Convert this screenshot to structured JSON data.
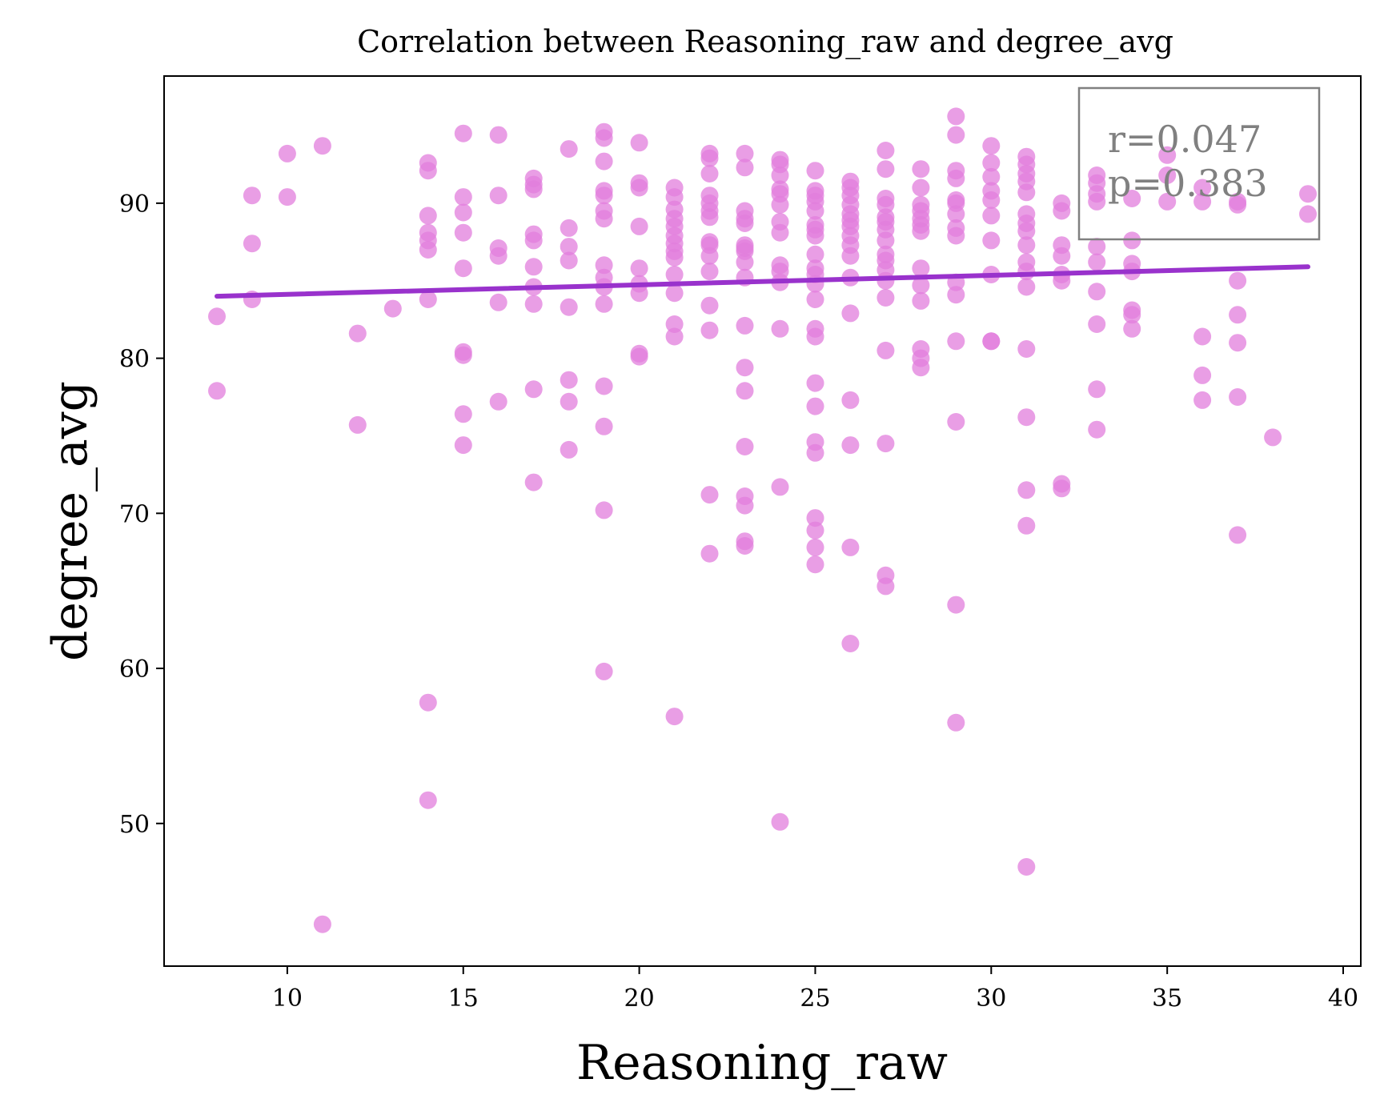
{
  "chart_data": {
    "type": "scatter",
    "title": "Correlation between Reasoning_raw and degree_avg",
    "xlabel": "Reasoning_raw",
    "ylabel": "degree_avg",
    "xlim": [
      6.5,
      40.5
    ],
    "ylim": [
      40.8,
      98.2
    ],
    "xticks": [
      10,
      15,
      20,
      25,
      30,
      35,
      40
    ],
    "yticks": [
      50,
      60,
      70,
      80,
      90
    ],
    "grid": false,
    "point_color": "#e17ddc",
    "line_color": "#9932cc",
    "stats": {
      "r_text": "r=0.047",
      "p_text": "p=0.383",
      "position": "top-right"
    },
    "regression_line": {
      "x": [
        8,
        39
      ],
      "y": [
        84.0,
        85.9
      ]
    },
    "points": [
      [
        8,
        82.7
      ],
      [
        8,
        77.9
      ],
      [
        9,
        90.5
      ],
      [
        9,
        87.4
      ],
      [
        9,
        83.8
      ],
      [
        10,
        93.2
      ],
      [
        10,
        90.4
      ],
      [
        11,
        93.7
      ],
      [
        11,
        43.5
      ],
      [
        12,
        81.6
      ],
      [
        12,
        75.7
      ],
      [
        13,
        83.2
      ],
      [
        14,
        92.6
      ],
      [
        14,
        92.1
      ],
      [
        14,
        89.2
      ],
      [
        14,
        88.1
      ],
      [
        14,
        87.6
      ],
      [
        14,
        87.0
      ],
      [
        14,
        83.8
      ],
      [
        14,
        57.8
      ],
      [
        14,
        51.5
      ],
      [
        15,
        94.5
      ],
      [
        15,
        90.4
      ],
      [
        15,
        89.4
      ],
      [
        15,
        88.1
      ],
      [
        15,
        85.8
      ],
      [
        15,
        80.4
      ],
      [
        15,
        80.2
      ],
      [
        15,
        76.4
      ],
      [
        15,
        74.4
      ],
      [
        16,
        94.4
      ],
      [
        16,
        90.5
      ],
      [
        16,
        87.1
      ],
      [
        16,
        86.6
      ],
      [
        16,
        83.6
      ],
      [
        16,
        77.2
      ],
      [
        17,
        91.6
      ],
      [
        17,
        91.2
      ],
      [
        17,
        90.9
      ],
      [
        17,
        88.0
      ],
      [
        17,
        87.6
      ],
      [
        17,
        85.9
      ],
      [
        17,
        84.6
      ],
      [
        17,
        83.5
      ],
      [
        17,
        78.0
      ],
      [
        17,
        72.0
      ],
      [
        18,
        93.5
      ],
      [
        18,
        88.4
      ],
      [
        18,
        87.2
      ],
      [
        18,
        86.3
      ],
      [
        18,
        83.3
      ],
      [
        18,
        78.6
      ],
      [
        18,
        77.2
      ],
      [
        18,
        74.1
      ],
      [
        19,
        94.6
      ],
      [
        19,
        94.2
      ],
      [
        19,
        92.7
      ],
      [
        19,
        90.8
      ],
      [
        19,
        90.5
      ],
      [
        19,
        89.5
      ],
      [
        19,
        89.0
      ],
      [
        19,
        86.0
      ],
      [
        19,
        85.2
      ],
      [
        19,
        84.6
      ],
      [
        19,
        83.5
      ],
      [
        19,
        78.2
      ],
      [
        19,
        75.6
      ],
      [
        19,
        70.2
      ],
      [
        19,
        59.8
      ],
      [
        20,
        93.9
      ],
      [
        20,
        91.3
      ],
      [
        20,
        91.0
      ],
      [
        20,
        88.5
      ],
      [
        20,
        85.8
      ],
      [
        20,
        84.8
      ],
      [
        20,
        84.2
      ],
      [
        20,
        80.3
      ],
      [
        20,
        80.1
      ],
      [
        21,
        91.0
      ],
      [
        21,
        90.4
      ],
      [
        21,
        89.6
      ],
      [
        21,
        89.0
      ],
      [
        21,
        88.5
      ],
      [
        21,
        87.9
      ],
      [
        21,
        87.4
      ],
      [
        21,
        86.9
      ],
      [
        21,
        86.5
      ],
      [
        21,
        85.4
      ],
      [
        21,
        84.2
      ],
      [
        21,
        82.2
      ],
      [
        21,
        81.4
      ],
      [
        21,
        56.9
      ],
      [
        22,
        93.2
      ],
      [
        22,
        92.9
      ],
      [
        22,
        91.9
      ],
      [
        22,
        90.5
      ],
      [
        22,
        90.0
      ],
      [
        22,
        89.5
      ],
      [
        22,
        89.1
      ],
      [
        22,
        87.5
      ],
      [
        22,
        87.3
      ],
      [
        22,
        86.6
      ],
      [
        22,
        85.6
      ],
      [
        22,
        83.4
      ],
      [
        22,
        81.8
      ],
      [
        22,
        71.2
      ],
      [
        22,
        67.4
      ],
      [
        23,
        93.2
      ],
      [
        23,
        92.3
      ],
      [
        23,
        89.5
      ],
      [
        23,
        89.0
      ],
      [
        23,
        88.7
      ],
      [
        23,
        87.3
      ],
      [
        23,
        87.1
      ],
      [
        23,
        86.9
      ],
      [
        23,
        86.2
      ],
      [
        23,
        85.2
      ],
      [
        23,
        82.1
      ],
      [
        23,
        79.4
      ],
      [
        23,
        77.9
      ],
      [
        23,
        74.3
      ],
      [
        23,
        71.1
      ],
      [
        23,
        70.5
      ],
      [
        23,
        68.2
      ],
      [
        23,
        67.9
      ],
      [
        24,
        92.8
      ],
      [
        24,
        92.5
      ],
      [
        24,
        91.8
      ],
      [
        24,
        90.9
      ],
      [
        24,
        90.6
      ],
      [
        24,
        89.9
      ],
      [
        24,
        88.8
      ],
      [
        24,
        88.1
      ],
      [
        24,
        86.0
      ],
      [
        24,
        85.6
      ],
      [
        24,
        84.9
      ],
      [
        24,
        81.9
      ],
      [
        24,
        71.7
      ],
      [
        24,
        50.1
      ],
      [
        25,
        92.1
      ],
      [
        25,
        90.8
      ],
      [
        25,
        90.5
      ],
      [
        25,
        90.1
      ],
      [
        25,
        89.5
      ],
      [
        25,
        88.6
      ],
      [
        25,
        88.3
      ],
      [
        25,
        87.9
      ],
      [
        25,
        86.7
      ],
      [
        25,
        85.8
      ],
      [
        25,
        85.4
      ],
      [
        25,
        84.8
      ],
      [
        25,
        83.8
      ],
      [
        25,
        81.9
      ],
      [
        25,
        81.4
      ],
      [
        25,
        78.4
      ],
      [
        25,
        76.9
      ],
      [
        25,
        74.6
      ],
      [
        25,
        73.9
      ],
      [
        25,
        69.7
      ],
      [
        25,
        68.9
      ],
      [
        25,
        67.8
      ],
      [
        25,
        66.7
      ],
      [
        26,
        91.4
      ],
      [
        26,
        91.0
      ],
      [
        26,
        90.5
      ],
      [
        26,
        89.9
      ],
      [
        26,
        89.3
      ],
      [
        26,
        88.9
      ],
      [
        26,
        88.5
      ],
      [
        26,
        87.9
      ],
      [
        26,
        87.3
      ],
      [
        26,
        86.6
      ],
      [
        26,
        85.2
      ],
      [
        26,
        82.9
      ],
      [
        26,
        77.3
      ],
      [
        26,
        74.4
      ],
      [
        26,
        67.8
      ],
      [
        26,
        61.6
      ],
      [
        27,
        93.4
      ],
      [
        27,
        92.2
      ],
      [
        27,
        90.3
      ],
      [
        27,
        89.9
      ],
      [
        27,
        89.1
      ],
      [
        27,
        88.8
      ],
      [
        27,
        88.3
      ],
      [
        27,
        87.6
      ],
      [
        27,
        86.7
      ],
      [
        27,
        86.3
      ],
      [
        27,
        85.7
      ],
      [
        27,
        85.0
      ],
      [
        27,
        83.9
      ],
      [
        27,
        80.5
      ],
      [
        27,
        74.5
      ],
      [
        27,
        66.0
      ],
      [
        27,
        65.3
      ],
      [
        28,
        92.2
      ],
      [
        28,
        91.0
      ],
      [
        28,
        89.9
      ],
      [
        28,
        89.5
      ],
      [
        28,
        89.0
      ],
      [
        28,
        88.6
      ],
      [
        28,
        88.2
      ],
      [
        28,
        85.8
      ],
      [
        28,
        84.7
      ],
      [
        28,
        83.7
      ],
      [
        28,
        80.6
      ],
      [
        28,
        80.0
      ],
      [
        28,
        79.4
      ],
      [
        29,
        95.6
      ],
      [
        29,
        94.4
      ],
      [
        29,
        92.1
      ],
      [
        29,
        91.6
      ],
      [
        29,
        90.2
      ],
      [
        29,
        90.0
      ],
      [
        29,
        89.3
      ],
      [
        29,
        88.4
      ],
      [
        29,
        87.9
      ],
      [
        29,
        84.9
      ],
      [
        29,
        84.1
      ],
      [
        29,
        81.1
      ],
      [
        29,
        75.9
      ],
      [
        29,
        64.1
      ],
      [
        29,
        56.5
      ],
      [
        30,
        93.7
      ],
      [
        30,
        92.6
      ],
      [
        30,
        91.7
      ],
      [
        30,
        90.8
      ],
      [
        30,
        90.2
      ],
      [
        30,
        89.2
      ],
      [
        30,
        87.6
      ],
      [
        30,
        85.4
      ],
      [
        30,
        81.1
      ],
      [
        30,
        81.1
      ],
      [
        31,
        93.0
      ],
      [
        31,
        92.5
      ],
      [
        31,
        91.9
      ],
      [
        31,
        91.4
      ],
      [
        31,
        90.7
      ],
      [
        31,
        89.3
      ],
      [
        31,
        88.7
      ],
      [
        31,
        88.2
      ],
      [
        31,
        87.3
      ],
      [
        31,
        86.2
      ],
      [
        31,
        85.6
      ],
      [
        31,
        84.6
      ],
      [
        31,
        80.6
      ],
      [
        31,
        76.2
      ],
      [
        31,
        71.5
      ],
      [
        31,
        69.2
      ],
      [
        31,
        47.2
      ],
      [
        32,
        90.0
      ],
      [
        32,
        89.5
      ],
      [
        32,
        87.3
      ],
      [
        32,
        86.6
      ],
      [
        32,
        85.4
      ],
      [
        32,
        85.0
      ],
      [
        32,
        71.9
      ],
      [
        32,
        71.6
      ],
      [
        33,
        91.8
      ],
      [
        33,
        91.3
      ],
      [
        33,
        90.6
      ],
      [
        33,
        90.1
      ],
      [
        33,
        87.2
      ],
      [
        33,
        86.2
      ],
      [
        33,
        84.3
      ],
      [
        33,
        82.2
      ],
      [
        33,
        78.0
      ],
      [
        33,
        75.4
      ],
      [
        34,
        90.3
      ],
      [
        34,
        87.6
      ],
      [
        34,
        86.1
      ],
      [
        34,
        85.6
      ],
      [
        34,
        83.1
      ],
      [
        34,
        82.8
      ],
      [
        34,
        81.9
      ],
      [
        35,
        93.1
      ],
      [
        35,
        91.8
      ],
      [
        35,
        90.1
      ],
      [
        36,
        91.0
      ],
      [
        36,
        90.1
      ],
      [
        36,
        81.4
      ],
      [
        36,
        78.9
      ],
      [
        36,
        77.3
      ],
      [
        37,
        90.1
      ],
      [
        37,
        89.9
      ],
      [
        37,
        85.0
      ],
      [
        37,
        82.8
      ],
      [
        37,
        81.0
      ],
      [
        37,
        77.5
      ],
      [
        37,
        68.6
      ],
      [
        38,
        74.9
      ],
      [
        39,
        90.6
      ],
      [
        39,
        89.3
      ]
    ]
  }
}
